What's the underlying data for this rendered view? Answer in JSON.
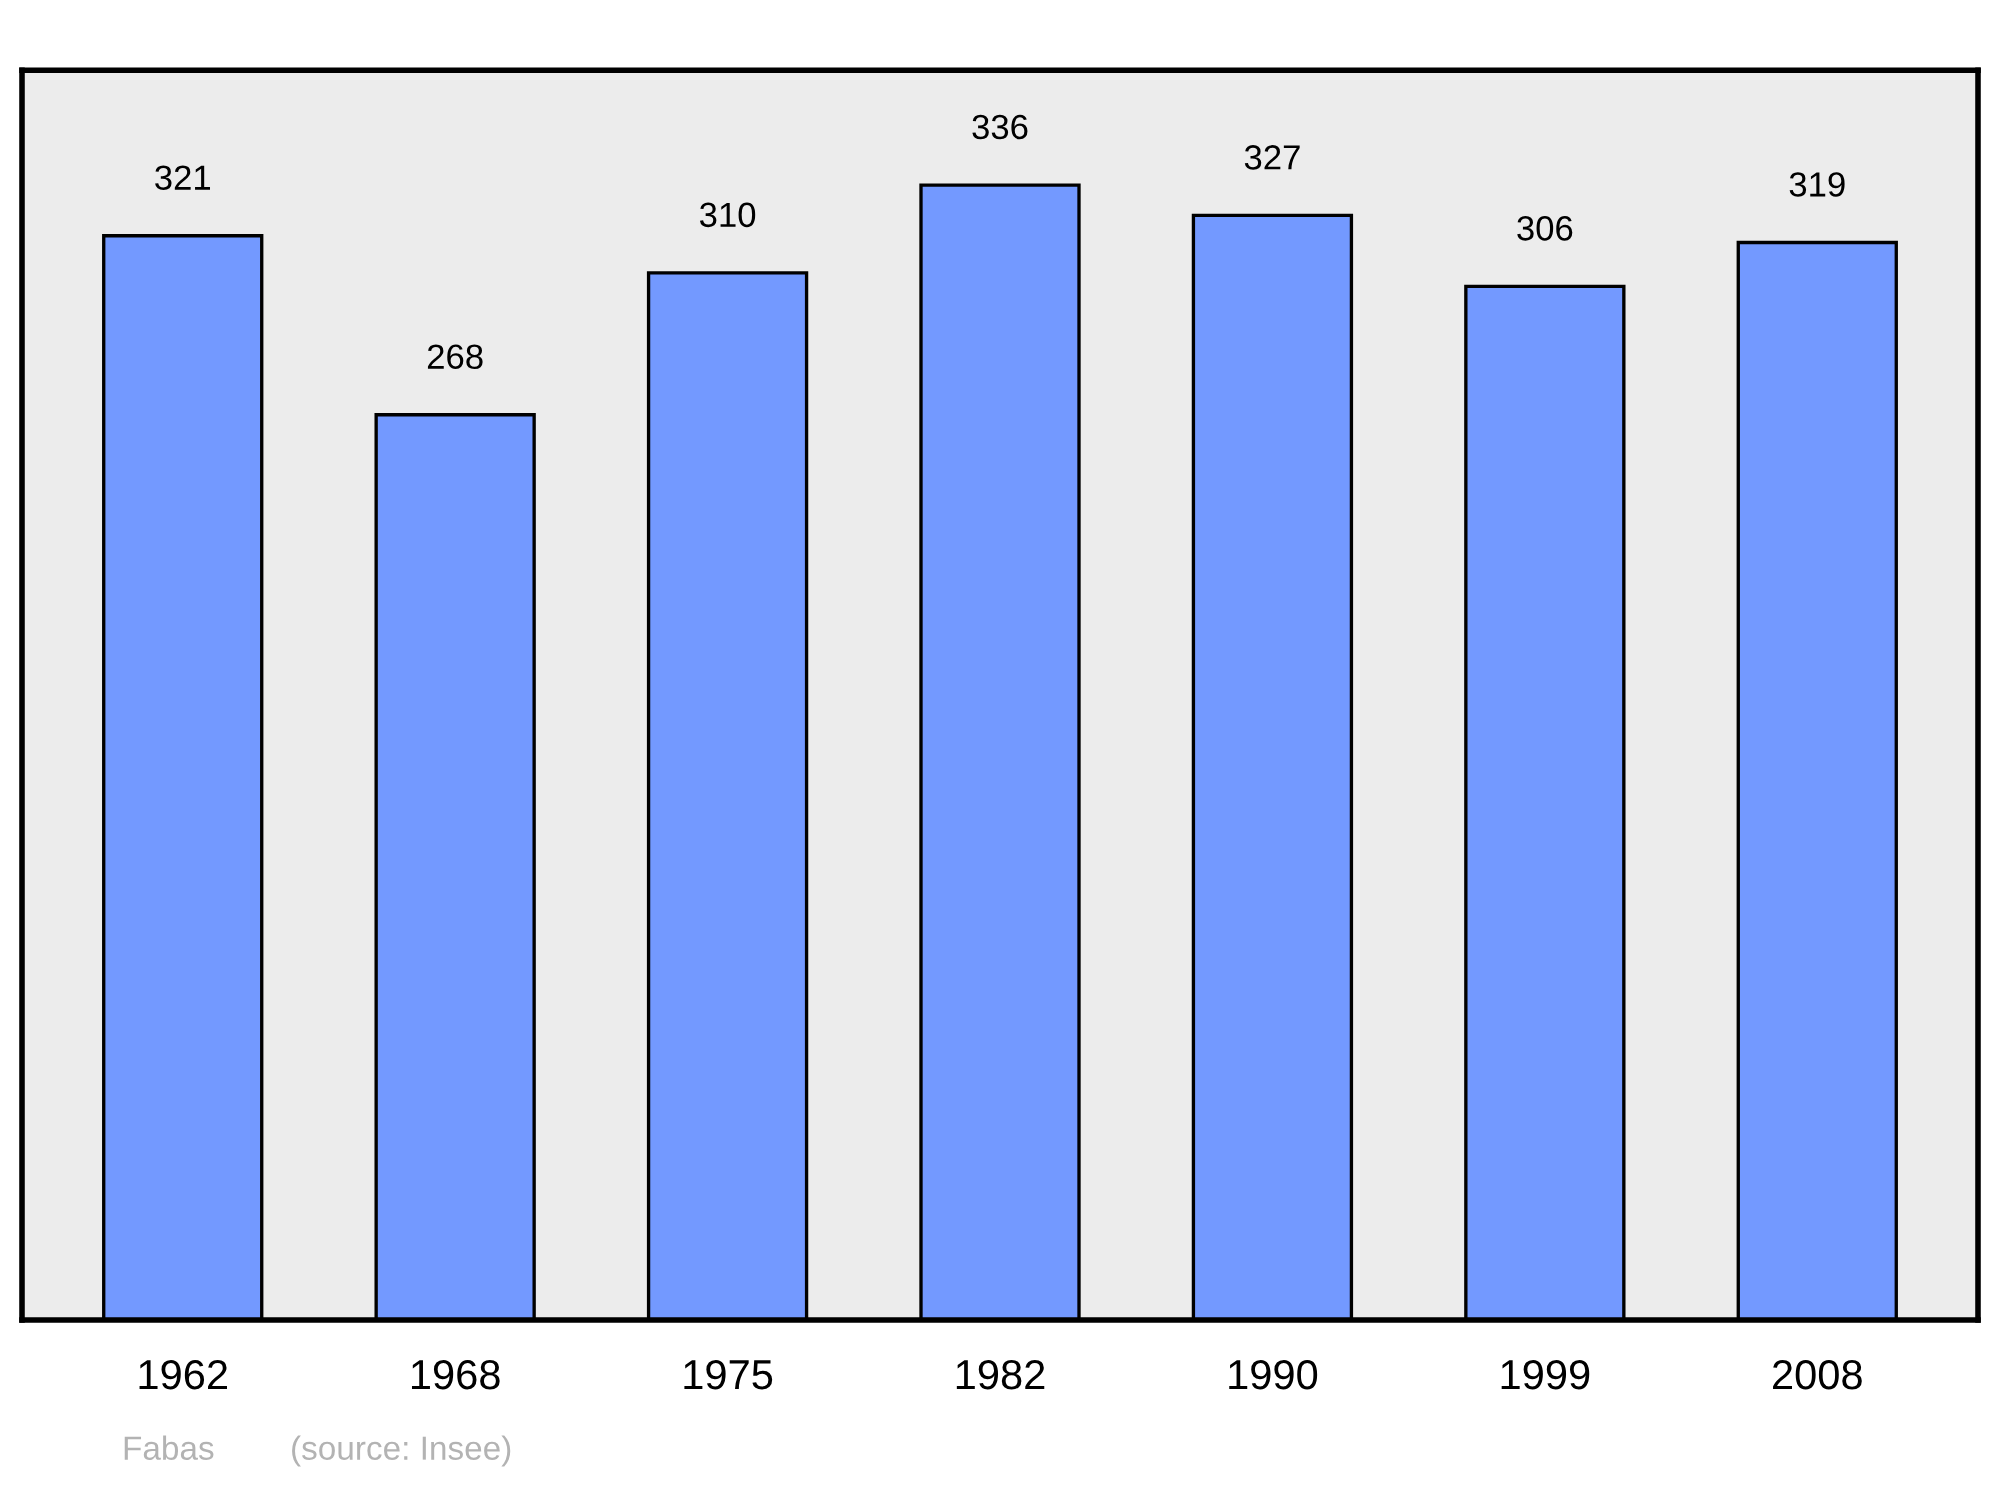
{
  "chart_data": {
    "type": "bar",
    "categories": [
      "1962",
      "1968",
      "1975",
      "1982",
      "1990",
      "1999",
      "2008"
    ],
    "values": [
      321,
      268,
      310,
      336,
      327,
      306,
      319
    ],
    "color": "#7399ff",
    "data_labels": true,
    "ylim": [
      0,
      370
    ],
    "tick_labels": "x",
    "grid": false,
    "legend": false,
    "annotations": [
      "Fabas",
      "(source: Insee)"
    ]
  }
}
